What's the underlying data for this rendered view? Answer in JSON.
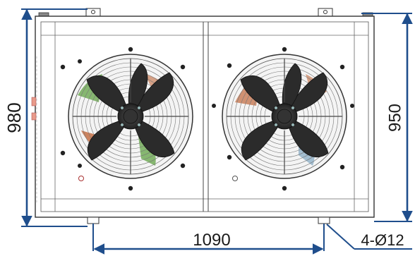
{
  "dimensions": {
    "height_left": "980",
    "height_right": "950",
    "mounting_width": "1090",
    "mounting_holes": "4-Ø12"
  },
  "colors": {
    "dimension_line": "#1f4e8c",
    "frame": "#333333",
    "fan_blade": "#2b2b2b"
  }
}
